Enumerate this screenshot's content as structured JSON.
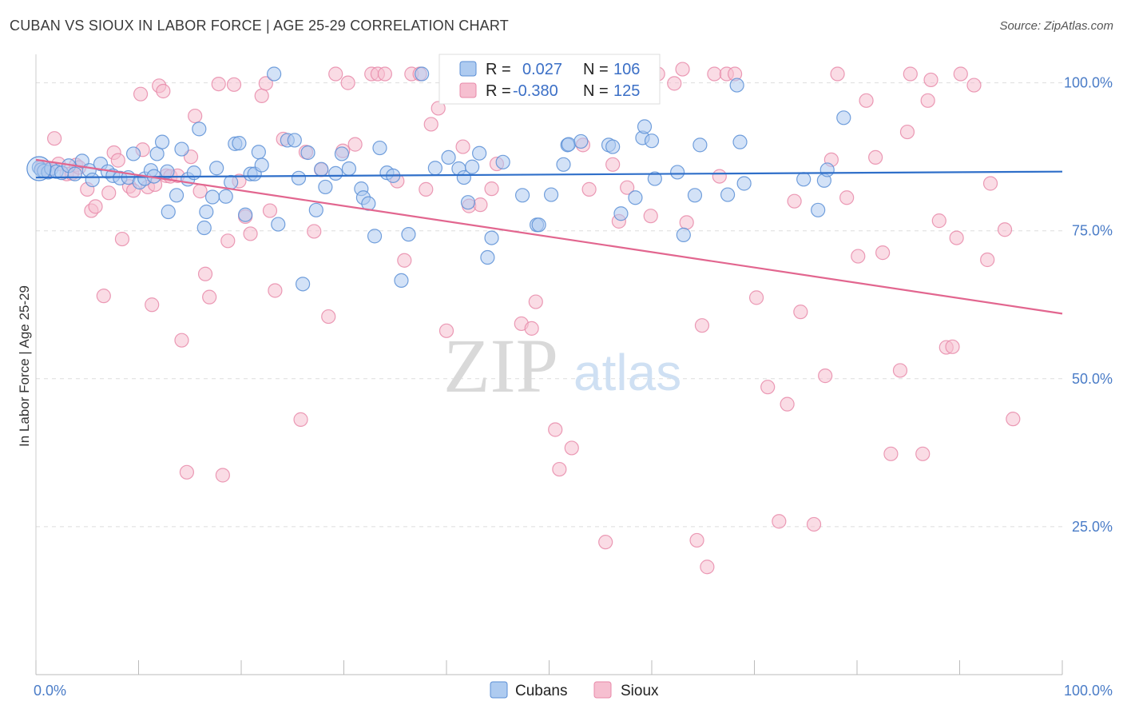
{
  "header": {
    "title": "CUBAN VS SIOUX IN LABOR FORCE | AGE 25-29 CORRELATION CHART",
    "source": "Source: ZipAtlas.com"
  },
  "watermark": {
    "zip": "ZIP",
    "atlas": "atlas"
  },
  "colors": {
    "cubans_fill": "#aecbf0",
    "cubans_stroke": "#5b8fd6",
    "cubans_line": "#2f6fc9",
    "sioux_fill": "#f6bfd0",
    "sioux_stroke": "#e889a9",
    "sioux_line": "#e2668f",
    "tick_label": "#4a7cc7",
    "grid": "#dddddd"
  },
  "stats_legend": {
    "rows": [
      {
        "r_label": "R =",
        "r_value": "0.027",
        "n_label": "N =",
        "n_value": "106"
      },
      {
        "r_label": "R =",
        "r_value": "-0.380",
        "n_label": "N =",
        "n_value": "125"
      }
    ]
  },
  "chart_data": {
    "type": "scatter",
    "ylabel": "In Labor Force | Age 25-29",
    "xlim": [
      0,
      100
    ],
    "ylim": [
      0,
      104
    ],
    "x_tick_labels": [
      {
        "value": 0,
        "label": "0.0%"
      },
      {
        "value": 100,
        "label": "100.0%"
      }
    ],
    "y_tick_labels": [
      {
        "value": 25,
        "label": "25.0%"
      },
      {
        "value": 50,
        "label": "50.0%"
      },
      {
        "value": 75,
        "label": "75.0%"
      },
      {
        "value": 100,
        "label": "100.0%"
      }
    ],
    "grid": true,
    "legend_position": "bottom",
    "series": [
      {
        "name": "Cubans",
        "trend": {
          "x": [
            0,
            100
          ],
          "y": [
            84.0,
            85.0
          ]
        },
        "points": [
          [
            0.3,
            85.7
          ],
          [
            0.5,
            85.3
          ],
          [
            0.8,
            85.1
          ],
          [
            1.2,
            84.9
          ],
          [
            1.5,
            85.5
          ],
          [
            2.0,
            85.0
          ],
          [
            2.5,
            84.8
          ],
          [
            3.2,
            86.0
          ],
          [
            3.8,
            84.6
          ],
          [
            4.5,
            86.8
          ],
          [
            5.2,
            85.2
          ],
          [
            5.5,
            83.6
          ],
          [
            6.3,
            86.3
          ],
          [
            7.0,
            85.0
          ],
          [
            7.5,
            84.3
          ],
          [
            8.2,
            83.9
          ],
          [
            9.0,
            84.0
          ],
          [
            9.5,
            88.0
          ],
          [
            10.1,
            83.2
          ],
          [
            10.6,
            83.8
          ],
          [
            11.2,
            85.2
          ],
          [
            11.5,
            84.2
          ],
          [
            11.8,
            88.0
          ],
          [
            12.3,
            90.0
          ],
          [
            12.8,
            85.0
          ],
          [
            12.9,
            78.2
          ],
          [
            13.7,
            81.0
          ],
          [
            14.2,
            88.8
          ],
          [
            14.8,
            83.7
          ],
          [
            15.4,
            84.8
          ],
          [
            15.9,
            92.2
          ],
          [
            16.4,
            75.5
          ],
          [
            16.6,
            78.2
          ],
          [
            17.2,
            80.7
          ],
          [
            17.6,
            85.6
          ],
          [
            18.5,
            80.8
          ],
          [
            19.0,
            83.2
          ],
          [
            19.4,
            89.7
          ],
          [
            19.8,
            89.8
          ],
          [
            20.4,
            77.7
          ],
          [
            20.9,
            84.6
          ],
          [
            21.3,
            84.6
          ],
          [
            21.7,
            88.3
          ],
          [
            22.0,
            86.1
          ],
          [
            23.2,
            101.5
          ],
          [
            23.6,
            76.1
          ],
          [
            24.5,
            90.3
          ],
          [
            25.2,
            90.3
          ],
          [
            25.6,
            83.9
          ],
          [
            26.0,
            66.0
          ],
          [
            26.5,
            88.2
          ],
          [
            27.3,
            78.5
          ],
          [
            27.8,
            85.4
          ],
          [
            28.2,
            82.4
          ],
          [
            29.2,
            84.7
          ],
          [
            29.8,
            88.0
          ],
          [
            30.5,
            85.5
          ],
          [
            31.7,
            82.1
          ],
          [
            31.9,
            80.6
          ],
          [
            32.4,
            79.6
          ],
          [
            33.0,
            74.1
          ],
          [
            33.5,
            89.0
          ],
          [
            34.2,
            84.8
          ],
          [
            34.8,
            84.3
          ],
          [
            35.6,
            66.6
          ],
          [
            36.3,
            74.4
          ],
          [
            37.6,
            101.5
          ],
          [
            38.9,
            85.6
          ],
          [
            40.2,
            87.4
          ],
          [
            41.2,
            85.5
          ],
          [
            41.7,
            84.0
          ],
          [
            42.1,
            79.8
          ],
          [
            42.5,
            85.8
          ],
          [
            43.2,
            88.1
          ],
          [
            44.0,
            70.5
          ],
          [
            44.4,
            73.8
          ],
          [
            45.5,
            86.6
          ],
          [
            47.4,
            81.0
          ],
          [
            48.8,
            76.0
          ],
          [
            49.0,
            76.0
          ],
          [
            50.2,
            81.1
          ],
          [
            51.4,
            86.2
          ],
          [
            51.8,
            89.5
          ],
          [
            51.9,
            89.6
          ],
          [
            53.1,
            90.1
          ],
          [
            55.8,
            89.5
          ],
          [
            56.2,
            89.2
          ],
          [
            57.0,
            77.9
          ],
          [
            58.4,
            80.6
          ],
          [
            59.1,
            90.7
          ],
          [
            59.3,
            92.6
          ],
          [
            60.0,
            90.2
          ],
          [
            60.3,
            83.8
          ],
          [
            62.5,
            84.9
          ],
          [
            63.1,
            74.3
          ],
          [
            64.2,
            81.0
          ],
          [
            64.7,
            89.5
          ],
          [
            67.4,
            81.1
          ],
          [
            68.3,
            99.6
          ],
          [
            68.6,
            90.0
          ],
          [
            69.0,
            83.0
          ],
          [
            74.8,
            83.7
          ],
          [
            76.2,
            78.5
          ],
          [
            76.8,
            83.5
          ],
          [
            77.1,
            85.3
          ],
          [
            78.7,
            94.1
          ]
        ]
      },
      {
        "name": "Sioux",
        "trend": {
          "x": [
            0,
            100
          ],
          "y": [
            87.0,
            61.0
          ]
        },
        "points": [
          [
            0.6,
            85.8
          ],
          [
            1.2,
            85.3
          ],
          [
            1.8,
            90.6
          ],
          [
            2.2,
            86.3
          ],
          [
            3.0,
            84.6
          ],
          [
            3.5,
            84.7
          ],
          [
            3.9,
            86.1
          ],
          [
            4.2,
            85.7
          ],
          [
            5.0,
            82.0
          ],
          [
            5.4,
            78.4
          ],
          [
            5.8,
            79.1
          ],
          [
            6.6,
            64.0
          ],
          [
            7.1,
            81.4
          ],
          [
            7.6,
            88.2
          ],
          [
            8.0,
            86.9
          ],
          [
            8.4,
            73.6
          ],
          [
            9.1,
            82.5
          ],
          [
            9.5,
            81.8
          ],
          [
            10.2,
            98.1
          ],
          [
            10.4,
            88.7
          ],
          [
            10.9,
            82.4
          ],
          [
            11.3,
            62.5
          ],
          [
            11.6,
            82.8
          ],
          [
            12.0,
            99.5
          ],
          [
            12.4,
            98.6
          ],
          [
            12.7,
            84.3
          ],
          [
            13.1,
            84.2
          ],
          [
            13.8,
            84.3
          ],
          [
            14.2,
            56.5
          ],
          [
            14.7,
            34.2
          ],
          [
            15.1,
            87.5
          ],
          [
            15.5,
            94.4
          ],
          [
            16.0,
            81.7
          ],
          [
            16.5,
            67.7
          ],
          [
            16.9,
            63.8
          ],
          [
            17.8,
            99.8
          ],
          [
            18.2,
            33.7
          ],
          [
            18.7,
            73.3
          ],
          [
            19.3,
            99.7
          ],
          [
            19.8,
            83.4
          ],
          [
            20.4,
            77.4
          ],
          [
            20.9,
            74.5
          ],
          [
            22.0,
            97.8
          ],
          [
            22.4,
            99.9
          ],
          [
            22.8,
            78.4
          ],
          [
            23.3,
            64.9
          ],
          [
            24.1,
            90.5
          ],
          [
            25.8,
            43.1
          ],
          [
            26.3,
            88.3
          ],
          [
            27.1,
            74.9
          ],
          [
            27.8,
            85.3
          ],
          [
            28.5,
            60.5
          ],
          [
            29.2,
            101.5
          ],
          [
            29.9,
            88.5
          ],
          [
            30.4,
            100.0
          ],
          [
            31.1,
            89.6
          ],
          [
            32.7,
            101.5
          ],
          [
            33.3,
            101.5
          ],
          [
            34.0,
            101.5
          ],
          [
            35.2,
            83.4
          ],
          [
            35.9,
            70.0
          ],
          [
            36.6,
            101.5
          ],
          [
            37.4,
            101.5
          ],
          [
            38.0,
            82.0
          ],
          [
            38.5,
            93.0
          ],
          [
            39.2,
            95.7
          ],
          [
            40.0,
            58.1
          ],
          [
            41.6,
            89.2
          ],
          [
            42.2,
            79.2
          ],
          [
            43.3,
            79.4
          ],
          [
            44.4,
            82.1
          ],
          [
            44.9,
            86.3
          ],
          [
            47.3,
            59.3
          ],
          [
            48.3,
            58.5
          ],
          [
            48.7,
            63.0
          ],
          [
            49.1,
            101.5
          ],
          [
            50.6,
            41.4
          ],
          [
            51.0,
            34.7
          ],
          [
            52.2,
            38.3
          ],
          [
            53.3,
            89.5
          ],
          [
            53.9,
            82.0
          ],
          [
            55.5,
            22.4
          ],
          [
            56.2,
            86.2
          ],
          [
            56.8,
            76.6
          ],
          [
            57.6,
            82.3
          ],
          [
            59.9,
            77.5
          ],
          [
            60.6,
            101.5
          ],
          [
            62.2,
            99.9
          ],
          [
            63.0,
            102.3
          ],
          [
            63.4,
            76.4
          ],
          [
            64.4,
            22.7
          ],
          [
            64.9,
            59.0
          ],
          [
            65.4,
            18.2
          ],
          [
            66.1,
            101.5
          ],
          [
            66.6,
            84.2
          ],
          [
            67.3,
            101.5
          ],
          [
            68.1,
            101.5
          ],
          [
            70.2,
            63.7
          ],
          [
            71.3,
            48.6
          ],
          [
            72.4,
            25.9
          ],
          [
            73.2,
            45.7
          ],
          [
            73.9,
            80.0
          ],
          [
            74.5,
            61.3
          ],
          [
            75.8,
            25.4
          ],
          [
            76.9,
            50.5
          ],
          [
            77.5,
            87.0
          ],
          [
            78.1,
            101.5
          ],
          [
            79.0,
            80.6
          ],
          [
            80.1,
            70.7
          ],
          [
            80.9,
            97.0
          ],
          [
            81.8,
            87.4
          ],
          [
            82.5,
            71.3
          ],
          [
            83.3,
            37.3
          ],
          [
            84.2,
            51.4
          ],
          [
            84.9,
            91.7
          ],
          [
            85.2,
            101.5
          ],
          [
            86.4,
            37.3
          ],
          [
            86.9,
            97.0
          ],
          [
            87.2,
            100.5
          ],
          [
            88.0,
            76.7
          ],
          [
            88.7,
            55.3
          ],
          [
            89.3,
            55.4
          ],
          [
            89.7,
            73.8
          ],
          [
            90.1,
            101.5
          ],
          [
            91.4,
            99.6
          ],
          [
            92.7,
            70.1
          ],
          [
            93.0,
            83.0
          ],
          [
            94.4,
            75.2
          ],
          [
            95.2,
            43.2
          ]
        ]
      }
    ]
  },
  "bottom_legend": {
    "items": [
      {
        "label": "Cubans"
      },
      {
        "label": "Sioux"
      }
    ]
  }
}
